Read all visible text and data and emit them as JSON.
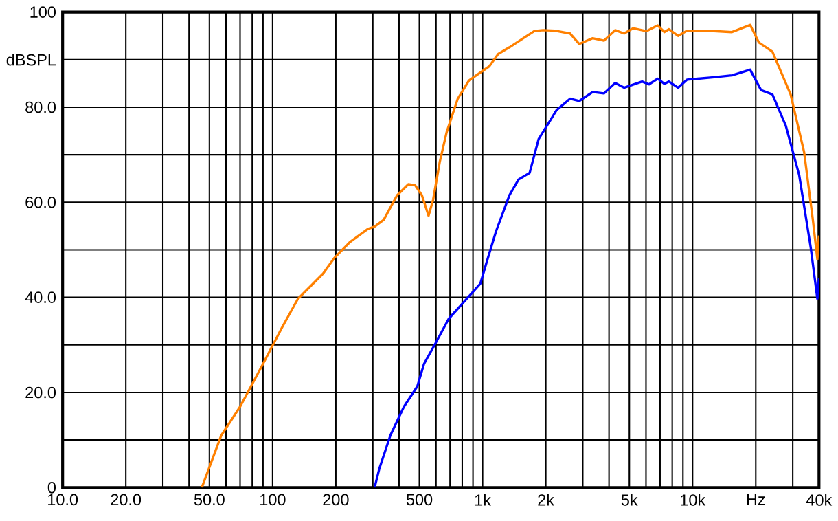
{
  "chart_data": {
    "type": "line",
    "log": "x",
    "grid": true,
    "xlim": [
      10,
      40000
    ],
    "ylim": [
      0,
      100
    ],
    "xticks": [
      {
        "value": 10,
        "label": "10.0"
      },
      {
        "value": 20,
        "label": "20.0"
      },
      {
        "value": 50,
        "label": "50.0"
      },
      100,
      200,
      500,
      {
        "value": 1000,
        "label": "1k"
      },
      {
        "value": 2000,
        "label": "2k"
      },
      {
        "value": 5000,
        "label": "5k"
      },
      {
        "value": 10000,
        "label": "10k"
      },
      {
        "value": 20000,
        "label": "Hz"
      },
      {
        "value": 40000,
        "label": "40k"
      }
    ],
    "yticks": [
      0,
      {
        "value": 10,
        "label": null
      },
      {
        "value": 20,
        "label": "20.0"
      },
      {
        "value": 30,
        "label": null
      },
      {
        "value": 40,
        "label": "40.0"
      },
      {
        "value": 50,
        "label": null
      },
      {
        "value": 60,
        "label": "60.0"
      },
      {
        "value": 70,
        "label": null
      },
      {
        "value": 80,
        "label": "80.0"
      },
      {
        "value": 90,
        "label": "dBSPL"
      },
      100
    ],
    "series": [
      {
        "color": "#ff8000",
        "x": [
          46,
          57,
          70,
          89,
          111,
          132,
          174,
          196,
          233,
          284,
          306,
          338,
          392,
          443,
          477,
          514,
          553,
          581,
          626,
          674,
          762,
          861,
          1076,
          1187,
          1343,
          1761,
          1943,
          2207,
          2613,
          2884,
          3344,
          3781,
          4279,
          4718,
          5210,
          6040,
          6820,
          7350,
          7720,
          8530,
          9420,
          12650,
          15400,
          18800,
          20700,
          24000,
          29300,
          34000,
          37400,
          39300,
          40000
        ],
        "values": [
          0,
          11,
          17,
          25.6,
          33.7,
          39.7,
          45,
          48.2,
          51.6,
          54.4,
          54.9,
          56.3,
          61.5,
          63.8,
          63.6,
          61.5,
          57.2,
          60.5,
          68.6,
          74.7,
          81.8,
          85.6,
          88.6,
          91.2,
          92.6,
          96,
          96.2,
          96.1,
          95.5,
          93.3,
          94.5,
          94,
          96.2,
          95.5,
          96.6,
          96,
          97.2,
          95.8,
          96.4,
          95,
          96.1,
          96,
          95.8,
          97.3,
          93.6,
          91.7,
          82.7,
          70.5,
          56.3,
          48,
          53
        ]
      },
      {
        "color": "#0000ff",
        "x": [
          306,
          322,
          364,
          422,
          489,
          526,
          596,
          690,
          841,
          976,
          1052,
          1159,
          1343,
          1483,
          1676,
          1849,
          2252,
          2613,
          2884,
          3344,
          3781,
          4279,
          4718,
          5750,
          6200,
          6820,
          7350,
          7720,
          8530,
          9420,
          12650,
          15400,
          18800,
          21200,
          24000,
          27800,
          32200,
          36500,
          39300,
          40000
        ],
        "values": [
          0,
          3.9,
          11,
          17,
          21.3,
          26,
          30.3,
          35.5,
          39.7,
          42.9,
          47.8,
          53.9,
          61.5,
          64.8,
          66.2,
          73.3,
          79.4,
          81.8,
          81.3,
          83.2,
          82.9,
          85.1,
          84.1,
          85.4,
          84.8,
          86,
          84.9,
          85.4,
          84.1,
          85.8,
          86.3,
          86.7,
          87.9,
          83.6,
          82.7,
          76.1,
          65.7,
          50.6,
          39.7,
          44
        ]
      }
    ]
  }
}
